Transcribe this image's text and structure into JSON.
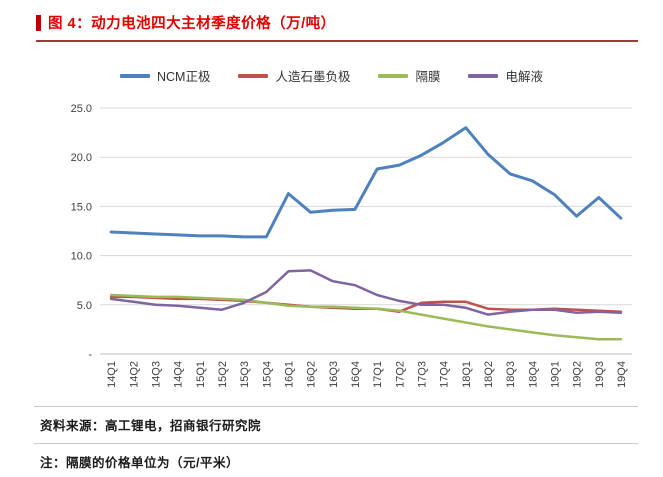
{
  "figure": {
    "title": "图 4：动力电池四大主材季度价格（万/吨）"
  },
  "chart_data": {
    "type": "line",
    "title": "动力电池四大主材季度价格（万/吨）",
    "categories": [
      "14Q1",
      "14Q2",
      "14Q3",
      "14Q4",
      "15Q1",
      "15Q2",
      "15Q3",
      "15Q4",
      "16Q1",
      "16Q2",
      "16Q3",
      "16Q4",
      "17Q1",
      "17Q2",
      "17Q3",
      "17Q4",
      "18Q1",
      "18Q2",
      "18Q3",
      "18Q4",
      "19Q1",
      "19Q2",
      "19Q3",
      "19Q4"
    ],
    "series": [
      {
        "name": "NCM正极",
        "color": "#4f81bd",
        "values": [
          12.4,
          12.3,
          12.2,
          12.1,
          12.0,
          12.0,
          11.9,
          11.9,
          16.3,
          14.4,
          14.6,
          14.7,
          18.8,
          19.2,
          20.2,
          21.5,
          23.0,
          20.3,
          18.3,
          17.6,
          16.2,
          14.0,
          15.9,
          13.8
        ]
      },
      {
        "name": "人造石墨负极",
        "color": "#c0504d",
        "values": [
          5.8,
          5.8,
          5.7,
          5.6,
          5.6,
          5.5,
          5.4,
          5.2,
          5.0,
          4.8,
          4.7,
          4.6,
          4.6,
          4.3,
          5.2,
          5.3,
          5.3,
          4.6,
          4.5,
          4.5,
          4.6,
          4.5,
          4.4,
          4.3
        ]
      },
      {
        "name": "隔膜",
        "color": "#9bbb59",
        "values": [
          6.0,
          5.9,
          5.8,
          5.8,
          5.7,
          5.6,
          5.5,
          5.2,
          4.9,
          4.8,
          4.8,
          4.7,
          4.6,
          4.4,
          4.0,
          3.6,
          3.2,
          2.8,
          2.5,
          2.2,
          1.9,
          1.7,
          1.5,
          1.5
        ]
      },
      {
        "name": "电解液",
        "color": "#8064a2",
        "values": [
          5.6,
          5.3,
          5.0,
          4.9,
          4.7,
          4.5,
          5.2,
          6.3,
          8.4,
          8.5,
          7.4,
          7.0,
          6.0,
          5.4,
          5.0,
          5.0,
          4.7,
          4.0,
          4.3,
          4.5,
          4.5,
          4.2,
          4.3,
          4.2
        ]
      }
    ],
    "ylim": [
      0,
      25
    ],
    "yticks": [
      0,
      5,
      10,
      15,
      20,
      25
    ],
    "ytick_labels": [
      "-",
      "5.0",
      "10.0",
      "15.0",
      "20.0",
      "25.0"
    ],
    "xlabel": "",
    "ylabel": "",
    "grid": true,
    "legend_position": "top"
  },
  "footer": {
    "source": "资料来源：高工锂电，招商银行研究院",
    "note": "注：隔膜的价格单位为（元/平米）"
  },
  "colors": {
    "title_red": "#e00000",
    "accent_red": "#c00000",
    "rule_red": "#a03b3b",
    "grid": "#d9d9d9",
    "axis": "#bfbfbf"
  }
}
